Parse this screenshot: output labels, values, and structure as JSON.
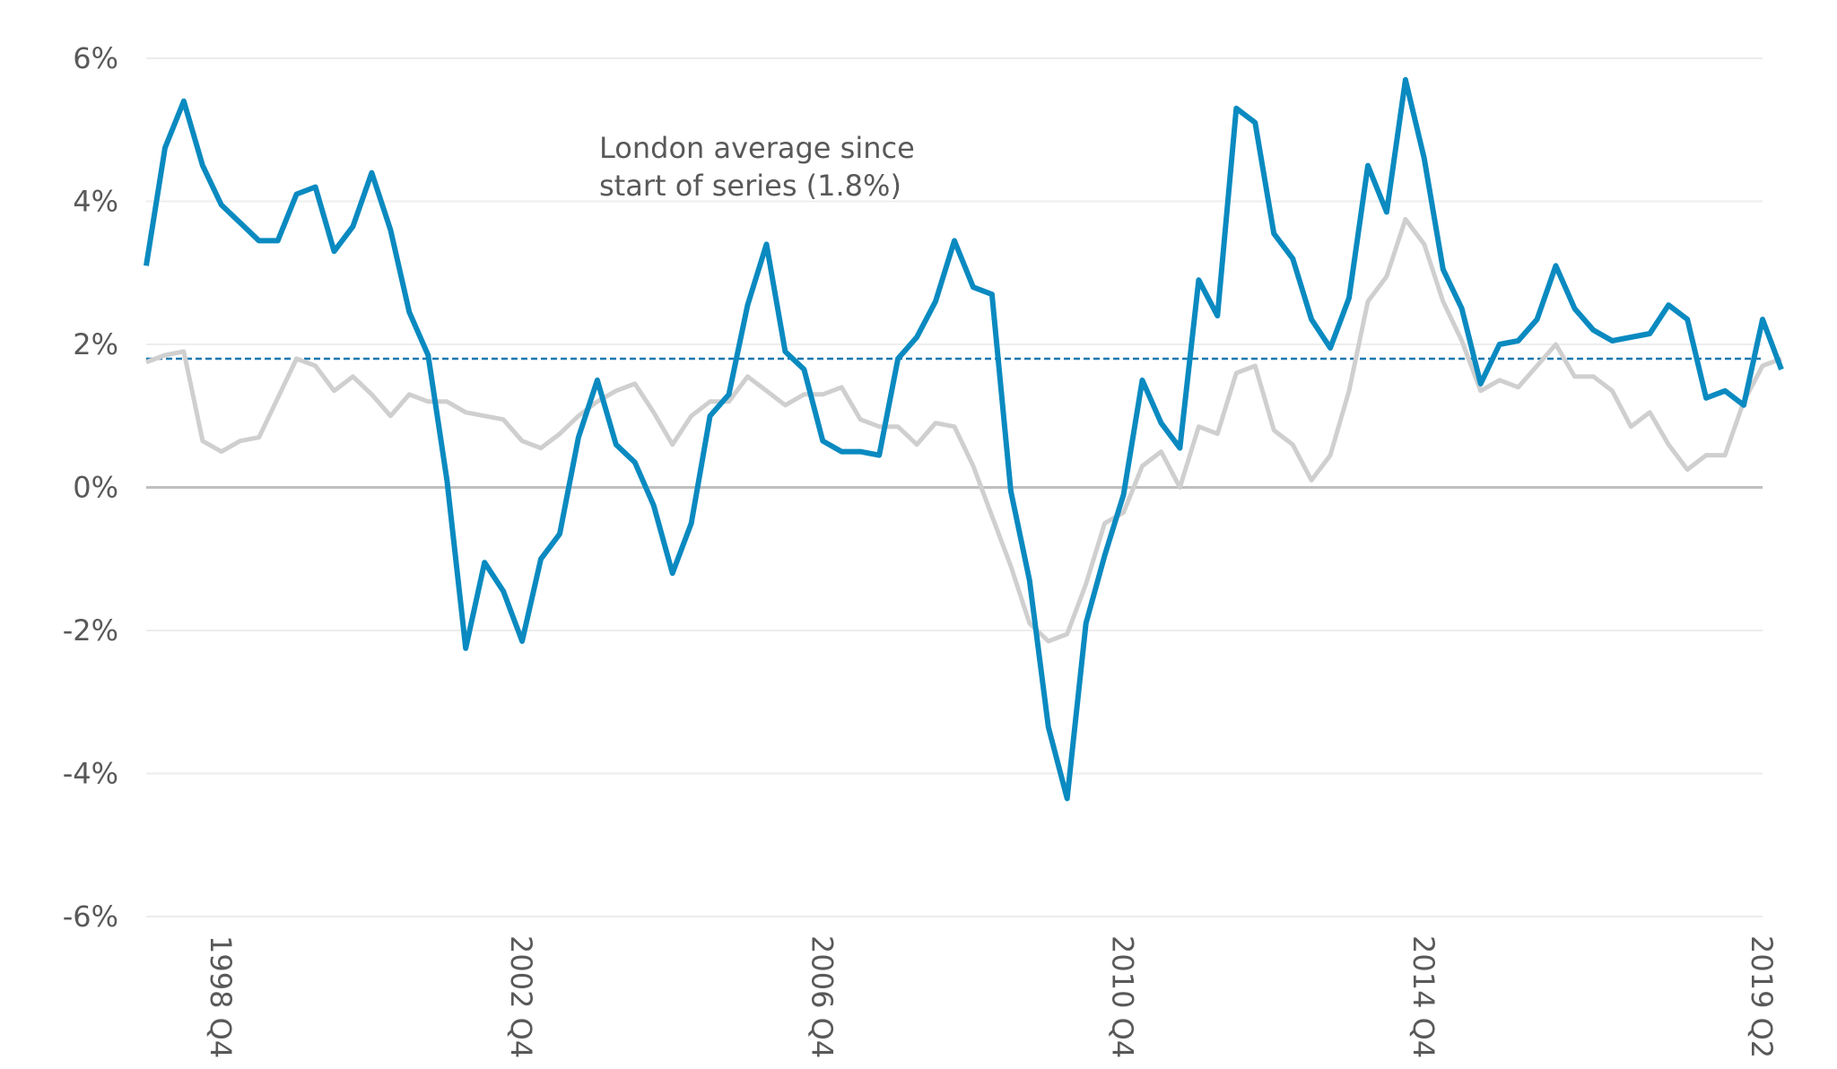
{
  "chart_data": {
    "type": "line",
    "title": "",
    "xlabel": "",
    "ylabel": "",
    "ylim": [
      -6,
      6
    ],
    "y_ticks": [
      6,
      4,
      2,
      0,
      -2,
      -4,
      -6
    ],
    "y_tick_labels": [
      "6%",
      "4%",
      "2%",
      "0%",
      "-2%",
      "-4%",
      "-6%"
    ],
    "x_start": "1997 Q4",
    "x_end": "2019 Q2",
    "x_tick_labels": [
      "1998 Q4",
      "2002 Q4",
      "2006 Q4",
      "2010 Q4",
      "2014 Q4",
      "2019 Q2"
    ],
    "grid": true,
    "legend": "none",
    "reference_line": {
      "value": 1.8,
      "color": "#1a78b0",
      "style": "dashed"
    },
    "annotation": {
      "lines": [
        "London average since",
        "start of series (1.8%)"
      ]
    },
    "series": [
      {
        "color": "#0a8ac0",
        "values": [
          3.1,
          4.75,
          5.4,
          4.5,
          3.95,
          3.7,
          3.45,
          3.45,
          4.1,
          4.2,
          3.3,
          3.65,
          4.4,
          3.6,
          2.45,
          1.85,
          0.1,
          -2.25,
          -1.05,
          -1.45,
          -2.15,
          -1.0,
          -0.65,
          0.7,
          1.5,
          0.6,
          0.35,
          -0.25,
          -1.2,
          -0.5,
          1.0,
          1.3,
          2.55,
          3.4,
          1.9,
          1.65,
          0.65,
          0.5,
          0.5,
          0.45,
          1.8,
          2.1,
          2.6,
          3.45,
          2.8,
          2.7,
          -0.05,
          -1.3,
          -3.35,
          -4.35,
          -1.9,
          -0.95,
          -0.1,
          1.5,
          0.9,
          0.55,
          2.9,
          2.4,
          5.3,
          5.1,
          3.55,
          3.2,
          2.35,
          1.95,
          2.65,
          4.5,
          3.85,
          5.7,
          4.6,
          3.05,
          2.5,
          1.45,
          2.0,
          2.05,
          2.35,
          3.1,
          2.5,
          2.2,
          2.05,
          2.1,
          2.15,
          2.55,
          2.35,
          1.25,
          1.35,
          1.15,
          2.35,
          1.65
        ]
      },
      {
        "color": "#cfcfcf",
        "values": [
          1.75,
          1.85,
          1.9,
          0.65,
          0.5,
          0.65,
          0.7,
          1.25,
          1.8,
          1.7,
          1.35,
          1.55,
          1.3,
          1.0,
          1.3,
          1.2,
          1.2,
          1.05,
          1.0,
          0.95,
          0.65,
          0.55,
          0.75,
          1.0,
          1.2,
          1.35,
          1.45,
          1.05,
          0.6,
          1.0,
          1.2,
          1.2,
          1.55,
          1.35,
          1.15,
          1.3,
          1.3,
          1.4,
          0.95,
          0.85,
          0.85,
          0.6,
          0.9,
          0.85,
          0.3,
          -0.4,
          -1.1,
          -1.9,
          -2.15,
          -2.05,
          -1.35,
          -0.5,
          -0.35,
          0.3,
          0.5,
          0.0,
          0.85,
          0.75,
          1.6,
          1.7,
          0.8,
          0.6,
          0.1,
          0.45,
          1.35,
          2.6,
          2.95,
          3.75,
          3.4,
          2.6,
          2.05,
          1.35,
          1.5,
          1.4,
          1.7,
          2.0,
          1.55,
          1.55,
          1.35,
          0.85,
          1.05,
          0.6,
          0.25,
          0.45,
          0.45,
          1.2,
          1.7,
          1.8
        ]
      }
    ]
  }
}
